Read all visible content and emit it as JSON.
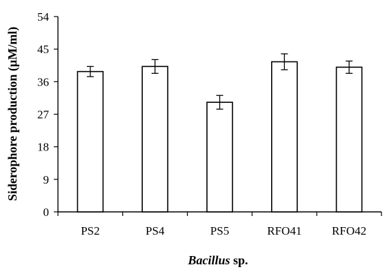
{
  "chart_data": {
    "type": "bar",
    "categories": [
      "PS2",
      "PS4",
      "PS5",
      "RFO41",
      "RFO42"
    ],
    "values": [
      38.8,
      40.2,
      30.3,
      41.5,
      40.0
    ],
    "error": [
      1.4,
      1.9,
      1.9,
      2.2,
      1.7
    ],
    "xlabel": {
      "italic": "Bacillus",
      "rest": " sp."
    },
    "ylabel": "Siderophore production (µM/ml)",
    "ylim": [
      0,
      54
    ],
    "yticks": [
      0,
      9,
      18,
      27,
      36,
      45,
      54
    ],
    "ytick_labels": [
      "0",
      "9",
      "18",
      "27",
      "36",
      "45",
      "54"
    ],
    "grid": false,
    "legend": "none",
    "colors": {
      "bar_fill": "#ffffff",
      "bar_stroke": "#000000",
      "axis": "#000000"
    }
  }
}
